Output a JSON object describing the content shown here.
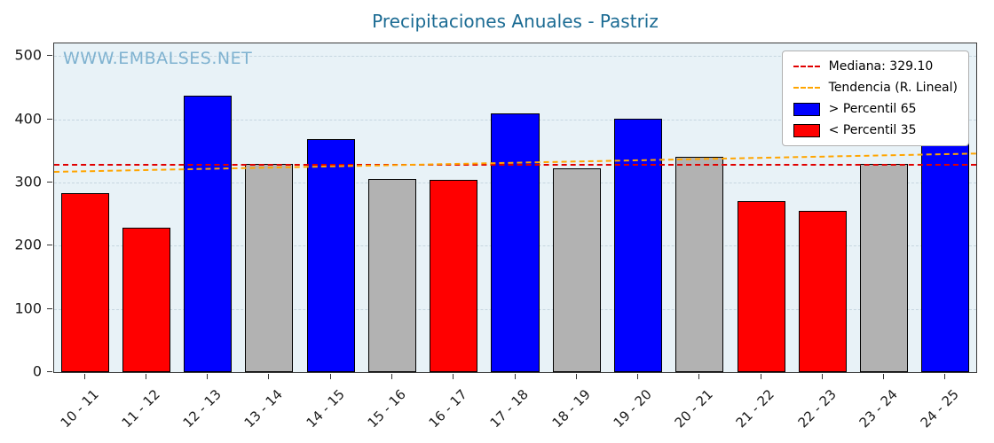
{
  "title": "Precipitaciones Anuales - Pastriz",
  "watermark": "WWW.EMBALSES.NET",
  "chart_data": {
    "type": "bar",
    "title": "Precipitaciones Anuales - Pastriz",
    "categories": [
      "10 - 11",
      "11 - 12",
      "12 - 13",
      "13 - 14",
      "14 - 15",
      "15 - 16",
      "16 - 17",
      "17 - 18",
      "18 - 19",
      "19 - 20",
      "20 - 21",
      "21 - 22",
      "22 - 23",
      "23 - 24",
      "24 - 25"
    ],
    "values": [
      283,
      228,
      437,
      330,
      368,
      305,
      304,
      409,
      322,
      401,
      341,
      270,
      255,
      329,
      428
    ],
    "bar_colors": [
      "red",
      "red",
      "blue",
      "gray",
      "blue",
      "gray",
      "red",
      "blue",
      "gray",
      "blue",
      "gray",
      "red",
      "red",
      "gray",
      "blue"
    ],
    "color_map": {
      "red": "#ff0000",
      "blue": "#0000ff",
      "gray": "#b2b2b2"
    },
    "median": 329.1,
    "trend": {
      "start": 318,
      "end": 347
    },
    "ylim": [
      0,
      520
    ],
    "yticks": [
      0,
      100,
      200,
      300,
      400,
      500
    ],
    "grid": true,
    "legend_position": "upper right",
    "legend": [
      {
        "label": "Mediana: 329.10",
        "style": "line",
        "color": "#e00000"
      },
      {
        "label": "Tendencia (R. Lineal)",
        "style": "line",
        "color": "#ffa500"
      },
      {
        "label": "> Percentil 65",
        "style": "patch",
        "color": "#0000ff"
      },
      {
        "label": "< Percentil 35",
        "style": "patch",
        "color": "#ff0000"
      }
    ]
  },
  "colors": {
    "title": "#1b6b93",
    "watermark": "#7fb2d0",
    "plot_background": "#e8f2f7",
    "median_line": "#e00000",
    "trend_line": "#ffa500"
  }
}
